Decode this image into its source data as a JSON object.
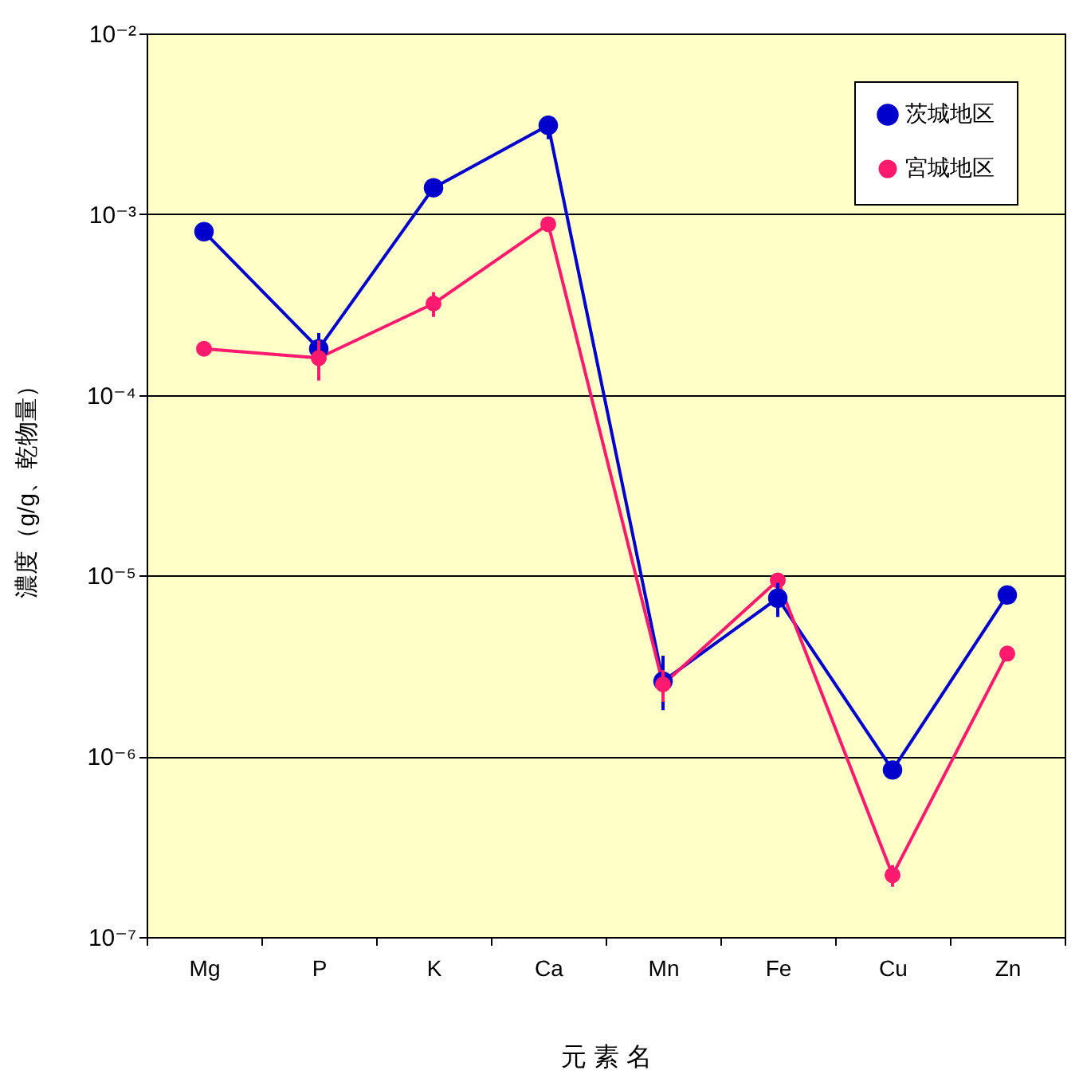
{
  "chart_data": {
    "type": "line",
    "xlabel": "元 素 名",
    "ylabel": "濃度（g/g、乾物量）",
    "categories": [
      "Mg",
      "P",
      "K",
      "Ca",
      "Mn",
      "Fe",
      "Cu",
      "Zn"
    ],
    "series": [
      {
        "name": "茨城地区",
        "color": "#0000cc",
        "values": [
          0.0008,
          0.00018,
          0.0014,
          0.0031,
          2.6e-06,
          7.5e-06,
          8.4e-07,
          7.8e-06
        ],
        "errors": [
          null,
          [
            0.00014,
            0.00022
          ],
          null,
          [
            0.0026,
            0.0035
          ],
          [
            1.8e-06,
            3.6e-06
          ],
          [
            5.9e-06,
            9.1e-06
          ],
          null,
          null
        ]
      },
      {
        "name": "宮城地区",
        "color": "#ff1a6e",
        "values": [
          0.00018,
          0.00016,
          0.00032,
          0.00088,
          2.5e-06,
          9.4e-06,
          2.2e-07,
          3.7e-06
        ],
        "errors": [
          null,
          [
            0.00012,
            0.0002
          ],
          [
            0.00027,
            0.00037
          ],
          null,
          [
            2e-06,
            3e-06
          ],
          null,
          [
            1.9e-07,
            2.5e-07
          ],
          null
        ]
      }
    ],
    "log": "y",
    "ylim": [
      1e-07,
      0.01
    ],
    "yticks": [
      {
        "value": 1e-07,
        "label": "10⁻⁷"
      },
      {
        "value": 1e-06,
        "label": "10⁻⁶"
      },
      {
        "value": 1e-05,
        "label": "10⁻⁵"
      },
      {
        "value": 0.0001,
        "label": "10⁻⁴"
      },
      {
        "value": 0.001,
        "label": "10⁻³"
      },
      {
        "value": 0.01,
        "label": "10⁻²"
      }
    ],
    "grid": "y",
    "legend": "top right",
    "marker": "circle",
    "line_style": "solid"
  }
}
